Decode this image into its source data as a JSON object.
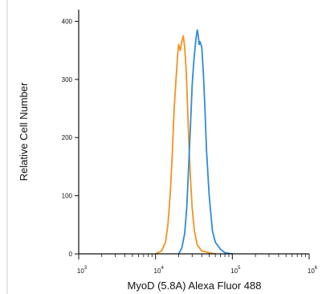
{
  "chart_data": {
    "type": "line",
    "title": "",
    "xlabel": "MyoD (5.8A) Alexa Fluor 488",
    "ylabel": "Relative Cell Number",
    "xscale": "log",
    "xlim": [
      1000,
      1000000
    ],
    "ylim": [
      0,
      420
    ],
    "x_ticks": [
      {
        "base": "10",
        "exp": "3"
      },
      {
        "base": "10",
        "exp": "4"
      },
      {
        "base": "10",
        "exp": "5"
      },
      {
        "base": "10",
        "exp": "6"
      }
    ],
    "y_ticks": [
      "0",
      "100",
      "200",
      "300",
      "400"
    ],
    "grid": false,
    "legend": "none",
    "series": [
      {
        "color": "#f5921e",
        "x": [
          10000,
          12000,
          13500,
          14500,
          15500,
          16500,
          17500,
          18500,
          19500,
          20000,
          21000,
          22000,
          23000,
          24000,
          25000,
          26000,
          27000,
          28500,
          30000,
          32000,
          35000,
          40000,
          50000,
          60000
        ],
        "y": [
          0,
          5,
          20,
          50,
          100,
          170,
          250,
          300,
          345,
          360,
          350,
          365,
          375,
          355,
          320,
          260,
          200,
          130,
          80,
          40,
          15,
          5,
          2,
          0
        ]
      },
      {
        "color": "#2e8bd8",
        "x": [
          20000,
          22000,
          24000,
          25500,
          27000,
          28500,
          30000,
          31500,
          33000,
          34000,
          35000,
          36000,
          37000,
          38000,
          40000,
          42000,
          44000,
          46000,
          50000,
          55000,
          60000,
          70000,
          80000,
          100000
        ],
        "y": [
          0,
          10,
          35,
          80,
          150,
          220,
          290,
          330,
          360,
          375,
          385,
          375,
          360,
          365,
          355,
          310,
          250,
          180,
          100,
          40,
          20,
          8,
          2,
          0
        ]
      }
    ]
  }
}
